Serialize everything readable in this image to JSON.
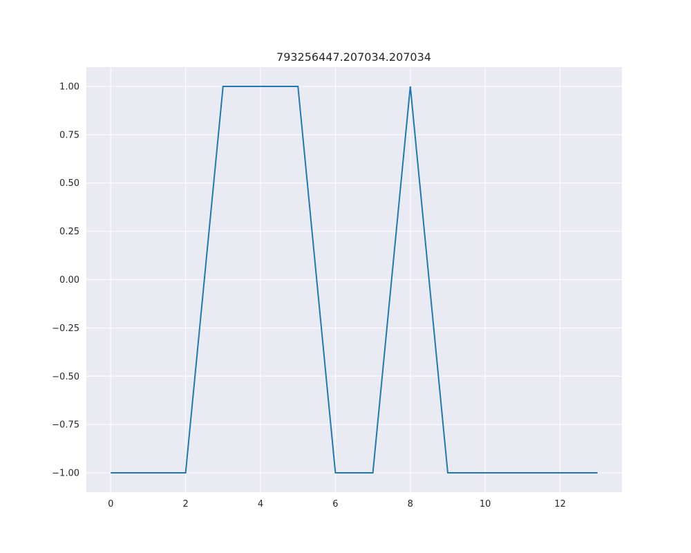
{
  "chart_data": {
    "type": "line",
    "title": "793256447.207034.207034",
    "xlabel": "",
    "ylabel": "",
    "xlim": [
      -0.65,
      13.65
    ],
    "ylim": [
      -1.1,
      1.1
    ],
    "xticks": [
      0,
      2,
      4,
      6,
      8,
      10,
      12
    ],
    "xtick_labels": [
      "0",
      "2",
      "4",
      "6",
      "8",
      "10",
      "12"
    ],
    "yticks": [
      1.0,
      0.75,
      0.5,
      0.25,
      0.0,
      -0.25,
      -0.5,
      -0.75,
      -1.0
    ],
    "ytick_labels": [
      "1.00",
      "0.75",
      "0.50",
      "0.25",
      "0.00",
      "−0.25",
      "−0.50",
      "−0.75",
      "−1.00"
    ],
    "grid": true,
    "series": [
      {
        "x": [
          0,
          1,
          2,
          3,
          4,
          5,
          6,
          7,
          8,
          9,
          10,
          11,
          12,
          13
        ],
        "y": [
          -1,
          -1,
          -1,
          1,
          1,
          1,
          -1,
          -1,
          1,
          -1,
          -1,
          -1,
          -1,
          -1
        ],
        "color": "#1f77b4"
      }
    ],
    "colors": {
      "background": "#eaeaf2",
      "grid": "#ffffff",
      "line": "#1f77b4"
    }
  }
}
